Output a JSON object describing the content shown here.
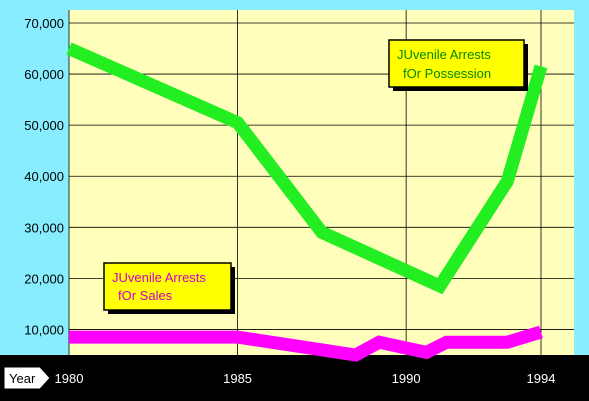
{
  "chart_data": {
    "type": "line",
    "x": [
      1980,
      1985,
      1987.5,
      1991,
      1993,
      1994
    ],
    "series": [
      {
        "name": "JUvenile Arrests fOr Possession",
        "color": "#22ee22",
        "points": [
          {
            "x": 1980,
            "y": 65000
          },
          {
            "x": 1985,
            "y": 50500
          },
          {
            "x": 1987.5,
            "y": 29000
          },
          {
            "x": 1991,
            "y": 18500
          },
          {
            "x": 1993,
            "y": 39000
          },
          {
            "x": 1994,
            "y": 61500
          }
        ]
      },
      {
        "name": "JUvenile Arrests fOr Sales",
        "color": "#ff00ff",
        "points": [
          {
            "x": 1980,
            "y": 8500
          },
          {
            "x": 1985,
            "y": 8500
          },
          {
            "x": 1988.5,
            "y": 5000
          },
          {
            "x": 1989.2,
            "y": 7500
          },
          {
            "x": 1990.6,
            "y": 5500
          },
          {
            "x": 1991.2,
            "y": 7500
          },
          {
            "x": 1993,
            "y": 7500
          },
          {
            "x": 1994,
            "y": 9500
          }
        ]
      }
    ],
    "xlim": [
      1980,
      1994
    ],
    "ylim": [
      5000,
      70000
    ],
    "xticks": [
      {
        "value": 1980,
        "label": "1980"
      },
      {
        "value": 1985,
        "label": "1985"
      },
      {
        "value": 1990,
        "label": "1990"
      },
      {
        "value": 1994,
        "label": "1994"
      }
    ],
    "yticks": [
      {
        "value": 10000,
        "label": "10,000"
      },
      {
        "value": 20000,
        "label": "20,000"
      },
      {
        "value": 30000,
        "label": "30,000"
      },
      {
        "value": 40000,
        "label": "40,000"
      },
      {
        "value": 50000,
        "label": "50,000"
      },
      {
        "value": 60000,
        "label": "60,000"
      },
      {
        "value": 70000,
        "label": "70,000"
      }
    ],
    "xlabel": "Year",
    "grid": true,
    "plot_background": "#ffffbb",
    "callouts": [
      {
        "line1": "JUvenile Arrests",
        "line2": "fOr Possession",
        "text_color": "#008800",
        "fill": "#ffff00"
      },
      {
        "line1": "JUvenile Arrests",
        "line2": "fOr Sales",
        "text_color": "#cc00cc",
        "fill": "#ffff00"
      }
    ]
  }
}
